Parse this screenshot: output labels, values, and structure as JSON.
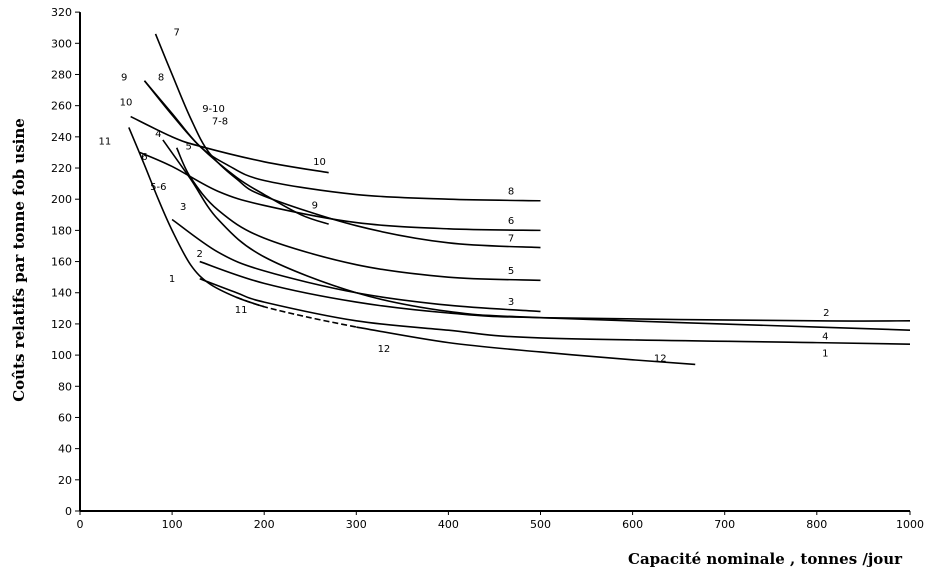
{
  "chart_data": {
    "type": "line",
    "title": "",
    "xlabel": "Capacité nominale , tonnes /jour",
    "ylabel": "Coûts relatifs par tonne fob usine",
    "xlim": [
      0,
      1000
    ],
    "ylim": [
      0,
      320
    ],
    "xticks": [
      0,
      100,
      200,
      300,
      400,
      500,
      600,
      700,
      800,
      1000
    ],
    "yticks": [
      0,
      20,
      40,
      60,
      80,
      100,
      120,
      140,
      160,
      180,
      200,
      220,
      240,
      260,
      280,
      300,
      320
    ],
    "grid": false,
    "series": [
      {
        "name": "7",
        "points": [
          [
            82,
            306
          ],
          [
            100,
            280
          ],
          [
            120,
            252
          ],
          [
            140,
            230
          ],
          [
            170,
            213
          ],
          [
            200,
            202
          ],
          [
            300,
            183
          ],
          [
            400,
            172
          ],
          [
            500,
            169
          ]
        ]
      },
      {
        "name": "8",
        "points": [
          [
            70,
            276
          ],
          [
            100,
            255
          ],
          [
            130,
            234
          ],
          [
            160,
            222
          ],
          [
            200,
            212
          ],
          [
            300,
            203
          ],
          [
            400,
            200
          ],
          [
            500,
            199
          ]
        ]
      },
      {
        "name": "9",
        "points": [
          [
            70,
            276
          ],
          [
            100,
            254
          ],
          [
            130,
            234
          ],
          [
            170,
            214
          ],
          [
            200,
            203
          ],
          [
            240,
            190
          ],
          [
            270,
            184
          ]
        ]
      },
      {
        "name": "6",
        "points": [
          [
            65,
            230
          ],
          [
            100,
            221
          ],
          [
            150,
            205
          ],
          [
            200,
            196
          ],
          [
            300,
            185
          ],
          [
            400,
            181
          ],
          [
            500,
            180
          ]
        ]
      },
      {
        "name": "10",
        "points": [
          [
            55,
            253
          ],
          [
            100,
            240
          ],
          [
            130,
            234
          ],
          [
            200,
            224
          ],
          [
            270,
            217
          ]
        ]
      },
      {
        "name": "5",
        "points": [
          [
            105,
            233
          ],
          [
            120,
            214
          ],
          [
            150,
            193
          ],
          [
            200,
            175
          ],
          [
            300,
            158
          ],
          [
            400,
            150
          ],
          [
            500,
            148
          ]
        ]
      },
      {
        "name": "4",
        "points": [
          [
            90,
            238
          ],
          [
            120,
            213
          ],
          [
            150,
            187
          ],
          [
            200,
            163
          ],
          [
            300,
            140
          ],
          [
            400,
            128
          ],
          [
            500,
            124
          ],
          [
            800,
            118
          ],
          [
            1000,
            116
          ]
        ]
      },
      {
        "name": "3",
        "points": [
          [
            100,
            187
          ],
          [
            150,
            166
          ],
          [
            200,
            154
          ],
          [
            300,
            140
          ],
          [
            400,
            132
          ],
          [
            500,
            128
          ]
        ]
      },
      {
        "name": "2",
        "points": [
          [
            130,
            160
          ],
          [
            200,
            146
          ],
          [
            300,
            134
          ],
          [
            400,
            127
          ],
          [
            500,
            124
          ],
          [
            800,
            122
          ],
          [
            1000,
            122
          ]
        ]
      },
      {
        "name": "1",
        "points": [
          [
            130,
            149
          ],
          [
            170,
            140
          ],
          [
            200,
            134
          ],
          [
            300,
            122
          ],
          [
            400,
            116
          ],
          [
            500,
            111
          ],
          [
            800,
            108
          ],
          [
            1000,
            107
          ]
        ]
      },
      {
        "name": "11",
        "points": [
          [
            53,
            246
          ],
          [
            70,
            222
          ],
          [
            85,
            200
          ],
          [
            100,
            180
          ],
          [
            120,
            158
          ],
          [
            140,
            146
          ],
          [
            170,
            137
          ],
          [
            200,
            131
          ]
        ]
      },
      {
        "name": "12",
        "dashed_until": 300,
        "points": [
          [
            170,
            137
          ],
          [
            200,
            131
          ],
          [
            250,
            124
          ],
          [
            300,
            118
          ],
          [
            400,
            108
          ],
          [
            500,
            102
          ],
          [
            600,
            97
          ],
          [
            668,
            94
          ]
        ]
      }
    ],
    "annotations": [
      {
        "text": "7",
        "x": 105,
        "y": 305
      },
      {
        "text": "9",
        "x": 48,
        "y": 276
      },
      {
        "text": "8",
        "x": 88,
        "y": 276
      },
      {
        "text": "10",
        "x": 50,
        "y": 260
      },
      {
        "text": "11",
        "x": 27,
        "y": 235
      },
      {
        "text": "4",
        "x": 85,
        "y": 240
      },
      {
        "text": "5",
        "x": 118,
        "y": 232
      },
      {
        "text": "6",
        "x": 70,
        "y": 225
      },
      {
        "text": "5-6",
        "x": 85,
        "y": 206
      },
      {
        "text": "9-10",
        "x": 145,
        "y": 256
      },
      {
        "text": "7-8",
        "x": 152,
        "y": 248
      },
      {
        "text": "10",
        "x": 260,
        "y": 222
      },
      {
        "text": "9",
        "x": 255,
        "y": 194
      },
      {
        "text": "8",
        "x": 468,
        "y": 203
      },
      {
        "text": "6",
        "x": 468,
        "y": 184
      },
      {
        "text": "7",
        "x": 468,
        "y": 173
      },
      {
        "text": "5",
        "x": 468,
        "y": 152
      },
      {
        "text": "3",
        "x": 468,
        "y": 132
      },
      {
        "text": "3",
        "x": 112,
        "y": 193
      },
      {
        "text": "2",
        "x": 130,
        "y": 163
      },
      {
        "text": "1",
        "x": 100,
        "y": 147
      },
      {
        "text": "11",
        "x": 175,
        "y": 127
      },
      {
        "text": "12",
        "x": 330,
        "y": 102
      },
      {
        "text": "12",
        "x": 630,
        "y": 96
      },
      {
        "text": "2",
        "x": 820,
        "y": 125
      },
      {
        "text": "4",
        "x": 818,
        "y": 110
      },
      {
        "text": "1",
        "x": 818,
        "y": 99
      }
    ]
  }
}
